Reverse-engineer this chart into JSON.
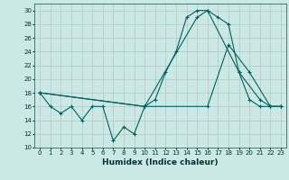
{
  "xlabel": "Humidex (Indice chaleur)",
  "bg_color": "#cce8e4",
  "grid_color": "#b0c8c4",
  "line_color": "#006060",
  "ylim": [
    10,
    31
  ],
  "xlim": [
    -0.5,
    23.5
  ],
  "yticks": [
    10,
    12,
    14,
    16,
    18,
    20,
    22,
    24,
    26,
    28,
    30
  ],
  "xticks": [
    0,
    1,
    2,
    3,
    4,
    5,
    6,
    7,
    8,
    9,
    10,
    11,
    12,
    13,
    14,
    15,
    16,
    17,
    18,
    19,
    20,
    21,
    22,
    23
  ],
  "series1_x": [
    0,
    1,
    2,
    3,
    4,
    5,
    6,
    7,
    8,
    9,
    10,
    11,
    12,
    13,
    14,
    15,
    16,
    17,
    18,
    19,
    20,
    21,
    22,
    23
  ],
  "series1_y": [
    18,
    16,
    15,
    16,
    14,
    16,
    16,
    11,
    13,
    12,
    16,
    17,
    21,
    24,
    29,
    30,
    30,
    29,
    28,
    21,
    17,
    16,
    16,
    16
  ],
  "series2_x": [
    0,
    10,
    15,
    16,
    19,
    21,
    22,
    23
  ],
  "series2_y": [
    18,
    16,
    29,
    30,
    21,
    17,
    16,
    16
  ],
  "series3_x": [
    0,
    10,
    16,
    18,
    20,
    22,
    23
  ],
  "series3_y": [
    18,
    16,
    16,
    25,
    21,
    16,
    16
  ]
}
